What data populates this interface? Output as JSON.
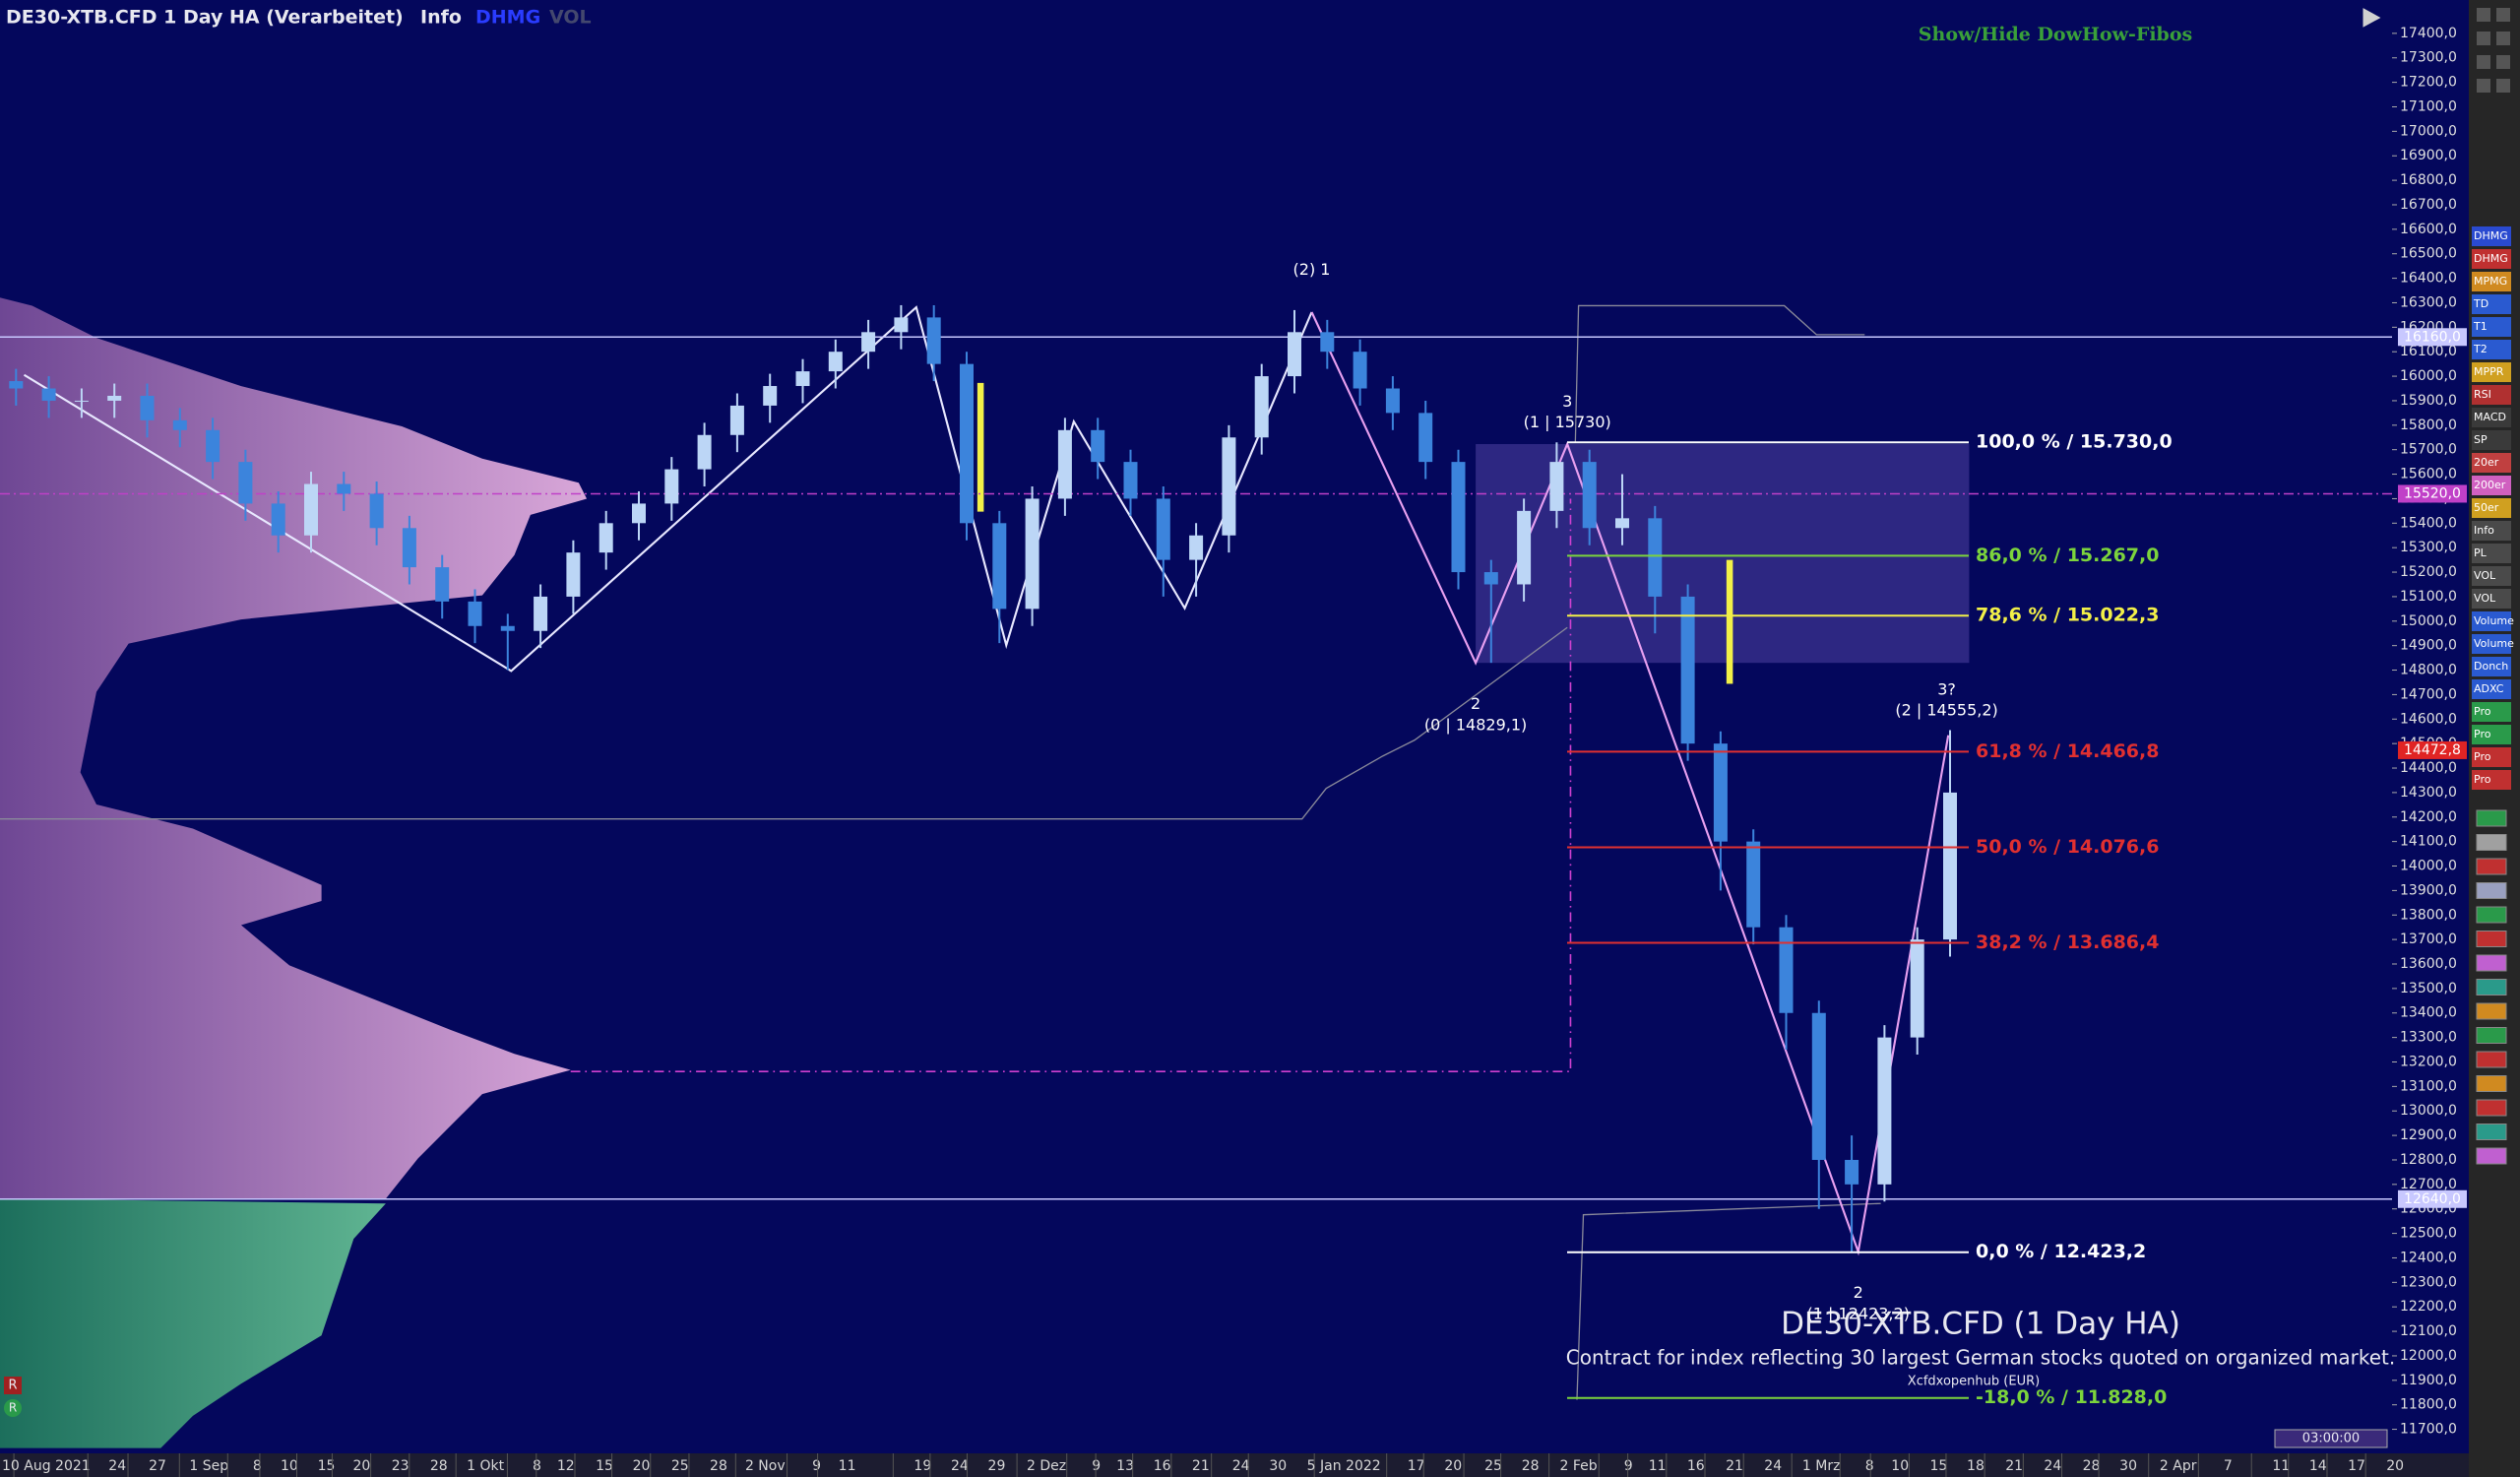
{
  "header": {
    "title": "DE30-XTB.CFD 1 Day HA (Verarbeitet)",
    "info": "Info",
    "indicators": [
      "DHMG",
      "VOL"
    ],
    "fib_toggle": "Show/Hide DowHow-Fibos"
  },
  "chart_data": {
    "type": "candlestick",
    "up_color": "#bcd6f6",
    "down_color": "#3c84dc",
    "ylim": [
      11650,
      17500
    ],
    "yticks": [
      {
        "value": 11700,
        "label": "11700,0"
      },
      {
        "value": 11800,
        "label": "11800,0"
      },
      {
        "value": 11900,
        "label": "11900,0"
      },
      {
        "value": 12000,
        "label": "12000,0"
      },
      {
        "value": 12100,
        "label": "12100,0"
      },
      {
        "value": 12200,
        "label": "12200,0"
      },
      {
        "value": 12300,
        "label": "12300,0"
      },
      {
        "value": 12400,
        "label": "12400,0"
      },
      {
        "value": 12500,
        "label": "12500,0"
      },
      {
        "value": 12600,
        "label": "12600,0"
      },
      {
        "value": 12700,
        "label": "12700,0"
      },
      {
        "value": 12800,
        "label": "12800,0"
      },
      {
        "value": 12900,
        "label": "12900,0"
      },
      {
        "value": 13000,
        "label": "13000,0"
      },
      {
        "value": 13100,
        "label": "13100,0"
      },
      {
        "value": 13200,
        "label": "13200,0"
      },
      {
        "value": 13300,
        "label": "13300,0"
      },
      {
        "value": 13400,
        "label": "13400,0"
      },
      {
        "value": 13500,
        "label": "13500,0"
      },
      {
        "value": 13600,
        "label": "13600,0"
      },
      {
        "value": 13700,
        "label": "13700,0"
      },
      {
        "value": 13800,
        "label": "13800,0"
      },
      {
        "value": 13900,
        "label": "13900,0"
      },
      {
        "value": 14000,
        "label": "14000,0"
      },
      {
        "value": 14100,
        "label": "14100,0"
      },
      {
        "value": 14200,
        "label": "14200,0"
      },
      {
        "value": 14300,
        "label": "14300,0"
      },
      {
        "value": 14400,
        "label": "14400,0"
      },
      {
        "value": 14500,
        "label": "14500,0"
      },
      {
        "value": 14600,
        "label": "14600,0"
      },
      {
        "value": 14700,
        "label": "14700,0"
      },
      {
        "value": 14800,
        "label": "14800,0"
      },
      {
        "value": 14900,
        "label": "14900,0"
      },
      {
        "value": 15000,
        "label": "15000,0"
      },
      {
        "value": 15100,
        "label": "15100,0"
      },
      {
        "value": 15200,
        "label": "15200,0"
      },
      {
        "value": 15300,
        "label": "15300,0"
      },
      {
        "value": 15400,
        "label": "15400,0"
      },
      {
        "value": 15500,
        "label": "15500,0"
      },
      {
        "value": 15600,
        "label": "15600,0"
      },
      {
        "value": 15700,
        "label": "15700,0"
      },
      {
        "value": 15800,
        "label": "15800,0"
      },
      {
        "value": 15900,
        "label": "15900,0"
      },
      {
        "value": 16000,
        "label": "16000,0"
      },
      {
        "value": 16100,
        "label": "16100,0"
      },
      {
        "value": 16200,
        "label": "16200,0"
      },
      {
        "value": 16300,
        "label": "16300,0"
      },
      {
        "value": 16400,
        "label": "16400,0"
      },
      {
        "value": 16500,
        "label": "16500,0"
      },
      {
        "value": 16600,
        "label": "16600,0"
      },
      {
        "value": 16700,
        "label": "16700,0"
      },
      {
        "value": 16800,
        "label": "16800,0"
      },
      {
        "value": 16900,
        "label": "16900,0"
      },
      {
        "value": 17000,
        "label": "17000,0"
      },
      {
        "value": 17100,
        "label": "17100,0"
      },
      {
        "value": 17200,
        "label": "17200,0"
      },
      {
        "value": 17300,
        "label": "17300,0"
      },
      {
        "value": 17400,
        "label": "17400,0"
      }
    ],
    "x_labels": [
      "10 Aug 2021",
      "24",
      "27",
      "1 Sep",
      "8",
      "10",
      "15",
      "20",
      "23",
      "28",
      "1 Okt",
      "8",
      "12",
      "15",
      "20",
      "25",
      "28",
      "2 Nov",
      "9",
      "11",
      "19",
      "24",
      "29",
      "2 Dez",
      "9",
      "13",
      "16",
      "21",
      "24",
      "30",
      "5 Jan 2022",
      "17",
      "20",
      "25",
      "28",
      "2 Feb",
      "9",
      "11",
      "16",
      "21",
      "24",
      "1 Mrz",
      "8",
      "10",
      "15",
      "18",
      "21",
      "24",
      "28",
      "30",
      "2 Apr",
      "7",
      "11",
      "14",
      "17",
      "20"
    ],
    "ohlc": [
      [
        15980,
        16030,
        15880,
        15950
      ],
      [
        15950,
        16000,
        15830,
        15900
      ],
      [
        15900,
        15950,
        15830,
        15900
      ],
      [
        15900,
        15970,
        15830,
        15920
      ],
      [
        15920,
        15970,
        15750,
        15820
      ],
      [
        15820,
        15870,
        15710,
        15780
      ],
      [
        15780,
        15830,
        15580,
        15650
      ],
      [
        15650,
        15700,
        15410,
        15480
      ],
      [
        15480,
        15530,
        15280,
        15350
      ],
      [
        15350,
        15610,
        15280,
        15560
      ],
      [
        15560,
        15610,
        15450,
        15520
      ],
      [
        15520,
        15570,
        15310,
        15380
      ],
      [
        15380,
        15430,
        15150,
        15220
      ],
      [
        15220,
        15270,
        15010,
        15080
      ],
      [
        15080,
        15130,
        14910,
        14980
      ],
      [
        14980,
        15030,
        14800,
        14960
      ],
      [
        14960,
        15150,
        14890,
        15100
      ],
      [
        15100,
        15330,
        15030,
        15280
      ],
      [
        15280,
        15450,
        15210,
        15400
      ],
      [
        15400,
        15530,
        15330,
        15480
      ],
      [
        15480,
        15670,
        15410,
        15620
      ],
      [
        15620,
        15810,
        15550,
        15760
      ],
      [
        15760,
        15930,
        15690,
        15880
      ],
      [
        15880,
        16010,
        15810,
        15960
      ],
      [
        15960,
        16070,
        15890,
        16020
      ],
      [
        16020,
        16150,
        15950,
        16100
      ],
      [
        16100,
        16230,
        16030,
        16180
      ],
      [
        16180,
        16290,
        16110,
        16240
      ],
      [
        16240,
        16290,
        15980,
        16050
      ],
      [
        16050,
        16100,
        15330,
        15400
      ],
      [
        15400,
        15450,
        14910,
        15050
      ],
      [
        15050,
        15550,
        14980,
        15500
      ],
      [
        15500,
        15830,
        15430,
        15780
      ],
      [
        15780,
        15830,
        15580,
        15650
      ],
      [
        15650,
        15700,
        15430,
        15500
      ],
      [
        15500,
        15550,
        15100,
        15250
      ],
      [
        15250,
        15400,
        15100,
        15350
      ],
      [
        15350,
        15800,
        15280,
        15750
      ],
      [
        15750,
        16050,
        15680,
        16000
      ],
      [
        16000,
        16270,
        15930,
        16180
      ],
      [
        16180,
        16230,
        16030,
        16100
      ],
      [
        16100,
        16150,
        15880,
        15950
      ],
      [
        15950,
        16000,
        15780,
        15850
      ],
      [
        15850,
        15900,
        15580,
        15650
      ],
      [
        15650,
        15700,
        15130,
        15200
      ],
      [
        15200,
        15250,
        14830,
        15150
      ],
      [
        15150,
        15500,
        15080,
        15450
      ],
      [
        15450,
        15730,
        15380,
        15650
      ],
      [
        15650,
        15700,
        15310,
        15380
      ],
      [
        15380,
        15600,
        15310,
        15420
      ],
      [
        15420,
        15470,
        14950,
        15100
      ],
      [
        15100,
        15150,
        14430,
        14500
      ],
      [
        14500,
        14550,
        13900,
        14100
      ],
      [
        14100,
        14150,
        13680,
        13750
      ],
      [
        13750,
        13800,
        13250,
        13400
      ],
      [
        13400,
        13450,
        12600,
        12800
      ],
      [
        12800,
        12900,
        12423,
        12700
      ],
      [
        12700,
        13350,
        12630,
        13300
      ],
      [
        13300,
        13750,
        13230,
        13700
      ],
      [
        13700,
        14555,
        13630,
        14300
      ]
    ],
    "price_lines": [
      {
        "value": 16160,
        "label": "16160,0",
        "color": "#c8c8ff",
        "draw_line": true
      },
      {
        "value": 15520,
        "label": "15520,0",
        "color": "#c040c8",
        "draw_line": true
      },
      {
        "value": 12640,
        "label": "12640,0",
        "color": "#c8c8ff",
        "draw_line": true
      },
      {
        "value": 14472.8,
        "label": "14472,8",
        "color": "#e02424",
        "draw_line": false
      }
    ],
    "fib_levels": [
      {
        "value": 15730,
        "label": "100,0 % / 15.730,0",
        "color": "#ffffff"
      },
      {
        "value": 15267,
        "label": "86,0 % / 15.267,0",
        "color": "#7cd43c"
      },
      {
        "value": 15022.3,
        "label": "78,6 % / 15.022,3",
        "color": "#f2f048"
      },
      {
        "value": 14466.8,
        "label": "61,8 % / 14.466,8",
        "color": "#e03030"
      },
      {
        "value": 14076.6,
        "label": "50,0 % / 14.076,6",
        "color": "#e03030"
      },
      {
        "value": 13686.4,
        "label": "38,2 % / 13.686,4",
        "color": "#e03030"
      },
      {
        "value": 12423.2,
        "label": "0,0 % / 12.423,2",
        "color": "#ffffff"
      },
      {
        "value": 11828,
        "label": "-18,0 % / 11.828,0",
        "color": "#7cd43c"
      }
    ],
    "wave_labels": [
      [
        "(2) 1"
      ],
      [
        "3",
        "(1 | 15730)"
      ],
      [
        "2",
        "(0 | 14829,1)"
      ],
      [
        "3?",
        "(2 | 14555,2)"
      ],
      [
        "2",
        "(1 | 12423,2)"
      ]
    ]
  },
  "toolbar": [
    "DHMG",
    "DHMG",
    "MPMG",
    "TD",
    "T1",
    "T2",
    "MPPR",
    "RSI",
    "MACD",
    "SP",
    "20er",
    "200er",
    "50er",
    "Info",
    "PL",
    "VOL",
    "VOL",
    "Volume",
    "Volume",
    "Donch",
    "ADXC",
    "Pro",
    "Pro",
    "Pro",
    "Pro"
  ],
  "badges": [
    "R",
    "R"
  ],
  "footer": {
    "instrument": "DE30-XTB.CFD (1 Day HA)",
    "description": "Contract for index reflecting 30 largest German stocks quoted on organized market.",
    "source": "Xcfdxopenhub  (EUR)",
    "timer": "03:00:00"
  }
}
